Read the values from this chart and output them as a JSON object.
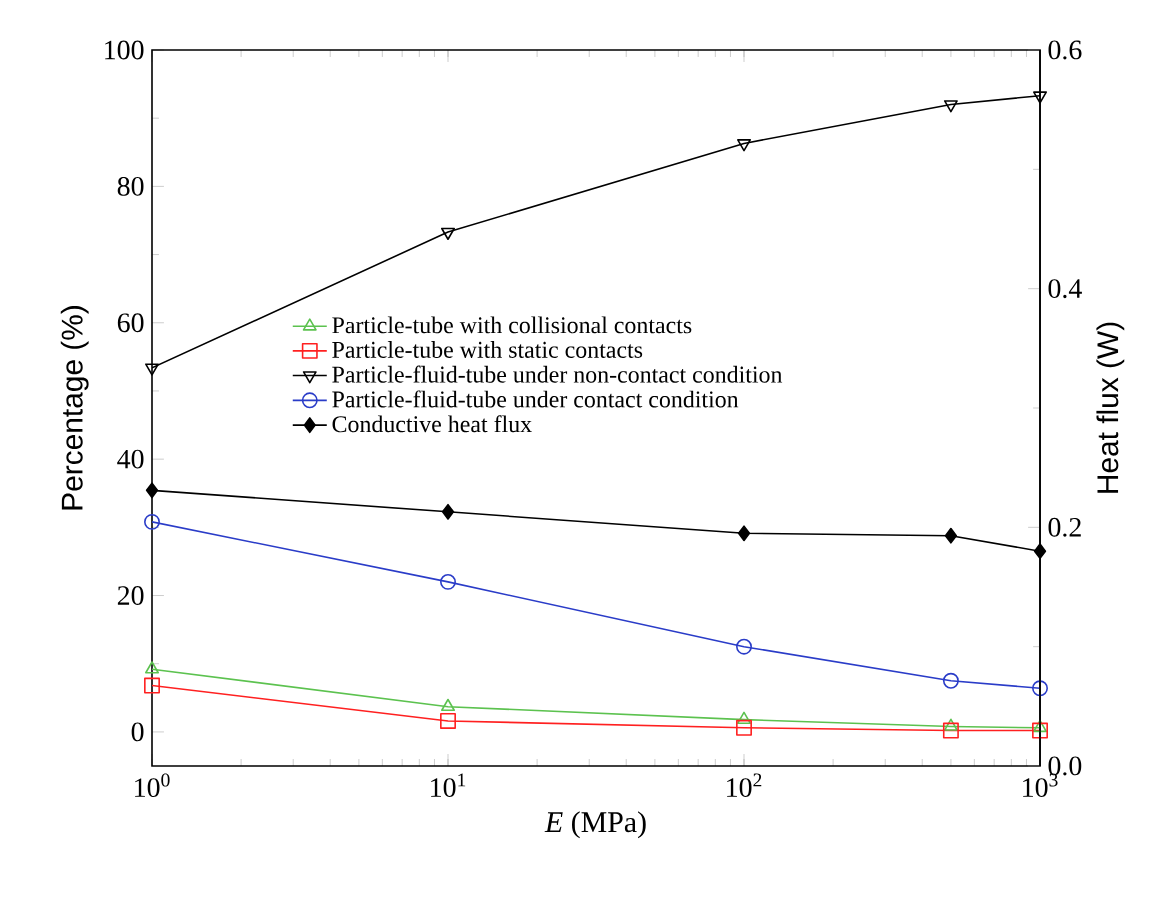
{
  "chart_data": {
    "type": "line",
    "xlabel": "*E* (MPa)",
    "ylabel": "Percentage (%)",
    "y2label": "Heat flux (W)",
    "log": "x",
    "legend": "left",
    "x": [
      1,
      10,
      100,
      500,
      1000
    ],
    "xlim": [
      1,
      1000
    ],
    "xticks": [
      {
        "value": 1,
        "label": "10$^{0}$"
      },
      {
        "value": 10,
        "label": "10$^{1}$"
      },
      {
        "value": 100,
        "label": "10$^{2}$"
      },
      {
        "value": 1000,
        "label": "10$^{3}$"
      }
    ],
    "ylim": [
      -5,
      100
    ],
    "yticks": [
      0,
      20,
      40,
      60,
      80,
      100
    ],
    "y2lim": [
      0,
      0.6
    ],
    "y2ticks": [
      {
        "value": 0,
        "label": "0.0"
      },
      0.2,
      0.4,
      0.6
    ],
    "series": [
      {
        "name": "Particle-tube with collisional contacts",
        "color": "#5cc24f",
        "marker": "triangle",
        "values": [
          9.2,
          3.7,
          1.8,
          0.8,
          0.6
        ]
      },
      {
        "name": "Particle-tube with static contacts",
        "color": "#ff2020",
        "marker": "square",
        "values": [
          6.8,
          1.6,
          0.6,
          0.2,
          0.2
        ]
      },
      {
        "name": "Particle-fluid-tube under non-contact condition",
        "color": "#000000",
        "marker": "triangle_down",
        "values": [
          53.4,
          73.3,
          86.3,
          92.0,
          93.3
        ]
      },
      {
        "name": "Particle-fluid-tube under contact condition",
        "color": "#2a3cc8",
        "marker": "circle",
        "values": [
          30.8,
          22.0,
          12.5,
          7.5,
          6.4
        ]
      },
      {
        "name": "Conductive heat flux",
        "color": "#000000",
        "marker": "diamond",
        "axis": "y2",
        "values": [
          0.231,
          0.213,
          0.195,
          0.193,
          0.18
        ]
      }
    ]
  }
}
